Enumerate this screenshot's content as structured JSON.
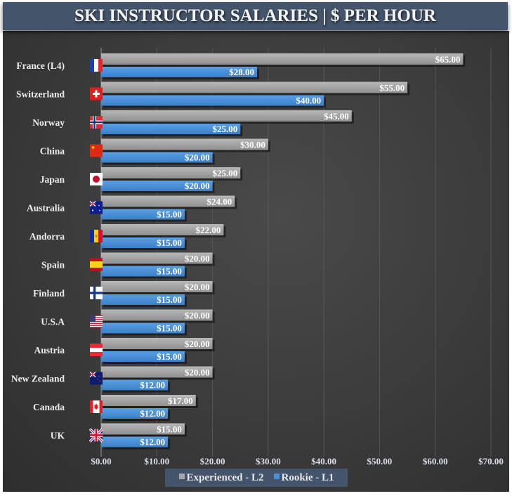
{
  "chart_data": {
    "type": "bar",
    "orientation": "horizontal",
    "title": "SKI INSTRUCTOR SALARIES | $ PER HOUR",
    "categories": [
      "France (L4)",
      "Switzerland",
      "Norway",
      "China",
      "Japan",
      "Australia",
      "Andorra",
      "Spain",
      "Finland",
      "U.S.A",
      "Austria",
      "New Zealand",
      "Canada",
      "UK"
    ],
    "flags": [
      "flag-france-icon",
      "flag-switzerland-icon",
      "flag-norway-icon",
      "flag-china-icon",
      "flag-japan-icon",
      "flag-australia-icon",
      "flag-andorra-icon",
      "flag-spain-icon",
      "flag-finland-icon",
      "flag-usa-icon",
      "flag-austria-icon",
      "flag-new-zealand-icon",
      "flag-canada-icon",
      "flag-uk-icon"
    ],
    "series": [
      {
        "name": "Experienced - L2",
        "color": "#a6a6a6",
        "values": [
          65,
          55,
          45,
          30,
          25,
          24,
          22,
          20,
          20,
          20,
          20,
          20,
          17,
          15
        ],
        "labels": [
          "$65.00",
          "$55.00",
          "$45.00",
          "$30.00",
          "$25.00",
          "$24.00",
          "$22.00",
          "$20.00",
          "$20.00",
          "$20.00",
          "$20.00",
          "$20.00",
          "$17.00",
          "$15.00"
        ]
      },
      {
        "name": "Rookie - L1",
        "color": "#4a90d9",
        "values": [
          28,
          40,
          25,
          20,
          20,
          15,
          15,
          15,
          15,
          15,
          15,
          12,
          12,
          12
        ],
        "labels": [
          "$28.00",
          "$40.00",
          "$25.00",
          "$20.00",
          "$20.00",
          "$15.00",
          "$15.00",
          "$15.00",
          "$15.00",
          "$15.00",
          "$15.00",
          "$12.00",
          "$12.00",
          "$12.00"
        ]
      }
    ],
    "xlim": [
      0,
      70
    ],
    "xticks": [
      0,
      10,
      20,
      30,
      40,
      50,
      60,
      70
    ],
    "xtick_labels": [
      "$0.00",
      "$10.00",
      "$20.00",
      "$30.00",
      "$40.00",
      "$50.00",
      "$60.00",
      "$70.00"
    ],
    "grid": true,
    "legend": "bottom"
  }
}
